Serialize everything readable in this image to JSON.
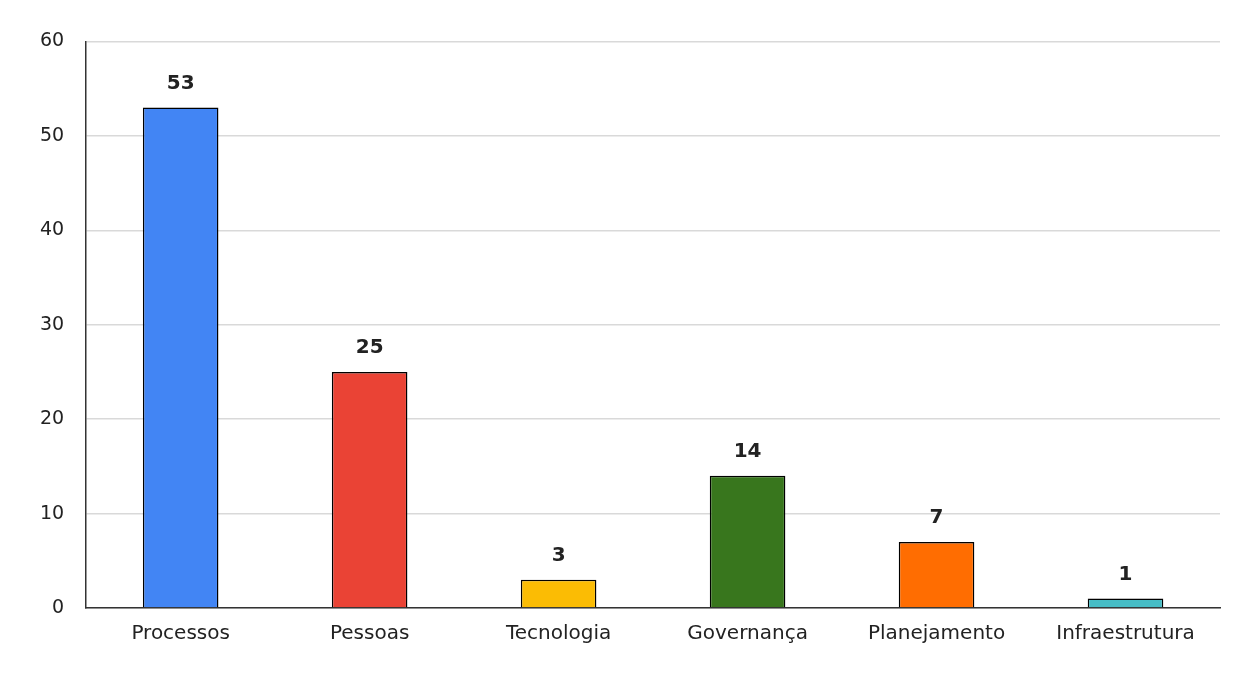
{
  "chart_data": {
    "type": "bar",
    "categories": [
      "Processos",
      "Pessoas",
      "Tecnologia",
      "Governança",
      "Planejamento",
      "Infraestrutura"
    ],
    "values": [
      53,
      25,
      3,
      14,
      7,
      1
    ],
    "colors": [
      "#4285f4",
      "#ea4335",
      "#fbbc04",
      "#38761d",
      "#ff6d01",
      "#46bdc6"
    ],
    "ylim": [
      0,
      60
    ],
    "yticks": [
      0,
      10,
      20,
      30,
      40,
      50,
      60
    ],
    "grid": "y",
    "data_labels": true,
    "legend": false
  }
}
